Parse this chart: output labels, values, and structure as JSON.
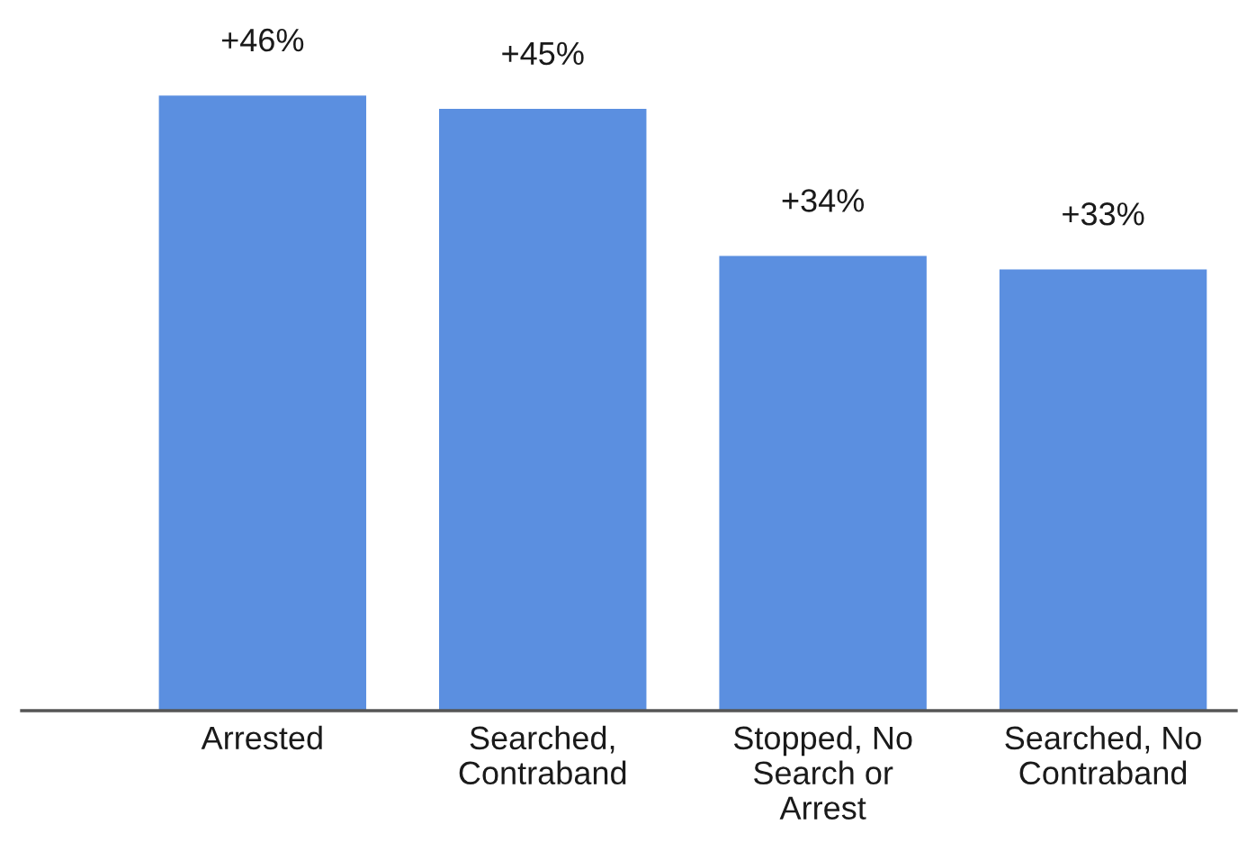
{
  "chart_data": {
    "type": "bar",
    "categories": [
      "Arrested",
      "Searched,\nContraband",
      "Stopped, No\nSearch or\nArrest",
      "Searched, No\nContraband"
    ],
    "values": [
      46,
      45,
      34,
      33
    ],
    "value_labels": [
      "+46%",
      "+45%",
      "+34%",
      "+33%"
    ],
    "color": "#5b8fe0"
  }
}
